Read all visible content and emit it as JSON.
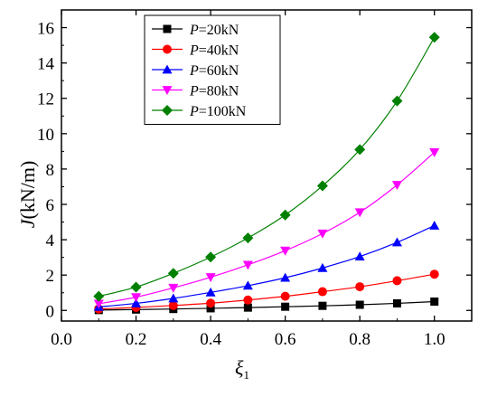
{
  "chart_data": {
    "type": "line",
    "xlabel": {
      "main": "ξ",
      "sub": "1"
    },
    "ylabel": {
      "italic": "J",
      "rest": "(kN/m)"
    },
    "xlim": [
      0.0,
      1.1
    ],
    "ylim": [
      -0.6,
      17
    ],
    "xticks": [
      0.0,
      0.2,
      0.4,
      0.6,
      0.8,
      1.0
    ],
    "yticks": [
      0,
      2,
      4,
      6,
      8,
      10,
      12,
      14,
      16
    ],
    "xtick_labels": [
      "0.0",
      "0.2",
      "0.4",
      "0.6",
      "0.8",
      "1.0"
    ],
    "ytick_labels": [
      "0",
      "2",
      "4",
      "6",
      "8",
      "10",
      "12",
      "14",
      "16"
    ],
    "grid": false,
    "legend_position": "top-left",
    "x": [
      0.1,
      0.2,
      0.3,
      0.4,
      0.5,
      0.6,
      0.7,
      0.8,
      0.9,
      1.0
    ],
    "series": [
      {
        "var": "P",
        "text": "=20kN",
        "marker": "square",
        "color": "#000000",
        "values": [
          0.02,
          0.05,
          0.08,
          0.12,
          0.16,
          0.21,
          0.26,
          0.32,
          0.4,
          0.5
        ]
      },
      {
        "var": "P",
        "text": "=40kN",
        "marker": "circle",
        "color": "#ff0000",
        "values": [
          0.08,
          0.17,
          0.28,
          0.41,
          0.59,
          0.8,
          1.06,
          1.34,
          1.68,
          2.05
        ]
      },
      {
        "var": "P",
        "text": "=60kN",
        "marker": "triangle-up",
        "color": "#0000ff",
        "values": [
          0.2,
          0.4,
          0.68,
          1.02,
          1.4,
          1.85,
          2.4,
          3.05,
          3.85,
          4.8
        ]
      },
      {
        "var": "P",
        "text": "=80kN",
        "marker": "triangle-down",
        "color": "#ff00ff",
        "values": [
          0.38,
          0.75,
          1.28,
          1.88,
          2.58,
          3.38,
          4.35,
          5.55,
          7.1,
          8.95
        ]
      },
      {
        "var": "P",
        "text": "=100kN",
        "marker": "diamond",
        "color": "#008000",
        "values": [
          0.8,
          1.32,
          2.1,
          3.02,
          4.1,
          5.4,
          7.05,
          9.1,
          11.85,
          15.45
        ]
      }
    ]
  }
}
